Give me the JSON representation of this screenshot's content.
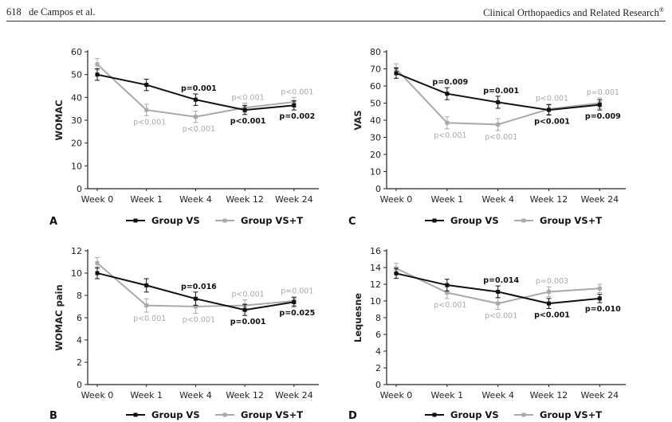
{
  "header": {
    "page_number": "618",
    "authors": "de Campos et al.",
    "journal": "Clinical Orthopaedics and Related Research",
    "journal_mark": "®"
  },
  "colors": {
    "group_vs": "#111111",
    "group_vst": "#a9a9a9"
  },
  "chart_data": [
    {
      "panel": "A",
      "type": "line",
      "ylabel": "WOMAC",
      "ylim": [
        0,
        60
      ],
      "yticks": [
        0,
        10,
        20,
        30,
        40,
        50,
        60
      ],
      "categories": [
        "Week 0",
        "Week 1",
        "Week 4",
        "Week 12",
        "Week 24"
      ],
      "series": [
        {
          "name": "Group VS",
          "values": [
            50,
            45.5,
            39,
            34.5,
            36.5
          ],
          "errors": [
            2.5,
            2.5,
            2.5,
            2,
            2
          ]
        },
        {
          "name": "Group VS+T",
          "values": [
            54.5,
            34.5,
            31.5,
            35.5,
            38
          ],
          "errors": [
            2.5,
            2.5,
            2.5,
            2,
            2
          ]
        }
      ],
      "annotations": [
        {
          "text": "p=0.001",
          "series": 0,
          "index": 2,
          "pos": "above"
        },
        {
          "text": "p<0.001",
          "series": 0,
          "index": 3,
          "pos": "below"
        },
        {
          "text": "p=0.002",
          "series": 0,
          "index": 4,
          "pos": "below"
        },
        {
          "text": "p<0.001",
          "series": 1,
          "index": 1,
          "pos": "below"
        },
        {
          "text": "p<0.001",
          "series": 1,
          "index": 2,
          "pos": "below"
        },
        {
          "text": "p<0.001",
          "series": 1,
          "index": 3,
          "pos": "above"
        },
        {
          "text": "p<0.001",
          "series": 1,
          "index": 4,
          "pos": "above"
        }
      ],
      "legend": [
        "Group VS",
        "Group VS+T"
      ]
    },
    {
      "panel": "C",
      "type": "line",
      "ylabel": "VAS",
      "ylim": [
        0,
        80
      ],
      "yticks": [
        0,
        10,
        20,
        30,
        40,
        50,
        60,
        70,
        80
      ],
      "categories": [
        "Week 0",
        "Week 1",
        "Week 4",
        "Week 12",
        "Week 24"
      ],
      "series": [
        {
          "name": "Group VS",
          "values": [
            67.5,
            55.5,
            50.5,
            46,
            49
          ],
          "errors": [
            3,
            3.5,
            3.5,
            3,
            3
          ]
        },
        {
          "name": "Group VS+T",
          "values": [
            70,
            38.5,
            37.5,
            46.5,
            50
          ],
          "errors": [
            3,
            3.5,
            3.5,
            3,
            3
          ]
        }
      ],
      "annotations": [
        {
          "text": "p=0.009",
          "series": 0,
          "index": 1,
          "pos": "above"
        },
        {
          "text": "p=0.001",
          "series": 0,
          "index": 2,
          "pos": "above"
        },
        {
          "text": "p<0.001",
          "series": 0,
          "index": 3,
          "pos": "below"
        },
        {
          "text": "p=0.009",
          "series": 0,
          "index": 4,
          "pos": "below"
        },
        {
          "text": "p<0.001",
          "series": 1,
          "index": 1,
          "pos": "below"
        },
        {
          "text": "p<0.001",
          "series": 1,
          "index": 2,
          "pos": "below"
        },
        {
          "text": "p<0.001",
          "series": 1,
          "index": 3,
          "pos": "above"
        },
        {
          "text": "p=0.001",
          "series": 1,
          "index": 4,
          "pos": "above"
        }
      ],
      "legend": [
        "Group VS",
        "Group VS+T"
      ]
    },
    {
      "panel": "B",
      "type": "line",
      "ylabel": "WOMAC pain",
      "ylim": [
        0,
        12
      ],
      "yticks": [
        0,
        2,
        4,
        6,
        8,
        10,
        12
      ],
      "categories": [
        "Week 0",
        "Week 1",
        "Week 4",
        "Week 12",
        "Week 24"
      ],
      "series": [
        {
          "name": "Group VS",
          "values": [
            10,
            8.9,
            7.7,
            6.7,
            7.4
          ],
          "errors": [
            0.5,
            0.6,
            0.6,
            0.5,
            0.4
          ]
        },
        {
          "name": "Group VS+T",
          "values": [
            10.9,
            7.1,
            7,
            7.1,
            7.5
          ],
          "errors": [
            0.5,
            0.6,
            0.6,
            0.5,
            0.4
          ]
        }
      ],
      "annotations": [
        {
          "text": "p=0.016",
          "series": 0,
          "index": 2,
          "pos": "above"
        },
        {
          "text": "p=0.001",
          "series": 0,
          "index": 3,
          "pos": "below"
        },
        {
          "text": "p=0.025",
          "series": 0,
          "index": 4,
          "pos": "below"
        },
        {
          "text": "p<0.001",
          "series": 1,
          "index": 1,
          "pos": "below"
        },
        {
          "text": "p<0.001",
          "series": 1,
          "index": 2,
          "pos": "below"
        },
        {
          "text": "p<0.001",
          "series": 1,
          "index": 3,
          "pos": "above"
        },
        {
          "text": "p=0.001",
          "series": 1,
          "index": 4,
          "pos": "above"
        }
      ],
      "legend": [
        "Group VS",
        "Group VS+T"
      ]
    },
    {
      "panel": "D",
      "type": "line",
      "ylabel": "Lequesne",
      "ylim": [
        0,
        16
      ],
      "yticks": [
        0,
        2,
        4,
        6,
        8,
        10,
        12,
        14,
        16
      ],
      "categories": [
        "Week 0",
        "Week 1",
        "Week 4",
        "Week 12",
        "Week 24"
      ],
      "series": [
        {
          "name": "Group VS",
          "values": [
            13.3,
            11.9,
            11.1,
            9.7,
            10.3
          ],
          "errors": [
            0.6,
            0.7,
            0.7,
            0.6,
            0.5
          ]
        },
        {
          "name": "Group VS+T",
          "values": [
            13.9,
            11,
            9.7,
            11.1,
            11.5
          ],
          "errors": [
            0.6,
            0.7,
            0.7,
            0.6,
            0.5
          ]
        }
      ],
      "annotations": [
        {
          "text": "p=0.014",
          "series": 0,
          "index": 2,
          "pos": "above"
        },
        {
          "text": "p<0.001",
          "series": 0,
          "index": 3,
          "pos": "below"
        },
        {
          "text": "p=0.010",
          "series": 0,
          "index": 4,
          "pos": "below"
        },
        {
          "text": "p<0.001",
          "series": 1,
          "index": 1,
          "pos": "below"
        },
        {
          "text": "p<0.001",
          "series": 1,
          "index": 2,
          "pos": "below"
        },
        {
          "text": "p=0.003",
          "series": 1,
          "index": 3,
          "pos": "above"
        }
      ],
      "legend": [
        "Group VS",
        "Group VS+T"
      ]
    }
  ]
}
